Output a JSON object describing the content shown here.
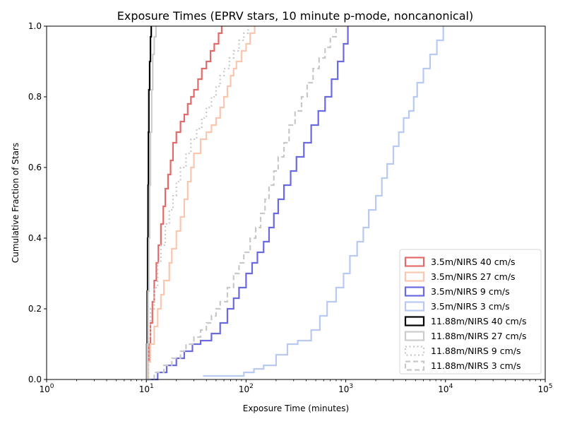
{
  "chart_data": {
    "type": "line",
    "title": "Exposure Times (EPRV stars, 10 minute p-mode, noncanonical)",
    "xlabel": "Exposure Time (minutes)",
    "ylabel": "Cumulative Fraction of Stars",
    "xscale": "log",
    "xlim": [
      1,
      100000
    ],
    "ylim": [
      0,
      1
    ],
    "x_ticks": [
      {
        "value": 1,
        "base": "10",
        "exp": "0"
      },
      {
        "value": 10,
        "base": "10",
        "exp": "1"
      },
      {
        "value": 100,
        "base": "10",
        "exp": "2"
      },
      {
        "value": 1000,
        "base": "10",
        "exp": "3"
      },
      {
        "value": 10000,
        "base": "10",
        "exp": "4"
      },
      {
        "value": 100000,
        "base": "10",
        "exp": "5"
      }
    ],
    "y_ticks": [
      "0.0",
      "0.2",
      "0.4",
      "0.6",
      "0.8",
      "1.0"
    ],
    "grid": false,
    "legend_position": "lower-right",
    "series": [
      {
        "name": "3.5m/NIRS 40 cm/s",
        "color": "#e26a6a",
        "style": "solid",
        "width": 2.2,
        "x": [
          10,
          10.3,
          10.6,
          11,
          11.5,
          12,
          12.6,
          13.2,
          14,
          14.8,
          15.5,
          16.5,
          17.5,
          18.5,
          20,
          22,
          24,
          26,
          28,
          30,
          33,
          36,
          40,
          44,
          48,
          53,
          57
        ],
        "y": [
          0,
          0.05,
          0.1,
          0.16,
          0.22,
          0.28,
          0.33,
          0.38,
          0.44,
          0.49,
          0.54,
          0.58,
          0.62,
          0.67,
          0.7,
          0.73,
          0.75,
          0.78,
          0.8,
          0.82,
          0.85,
          0.88,
          0.9,
          0.93,
          0.95,
          0.98,
          1.0
        ]
      },
      {
        "name": "3.5m/NIRS 27 cm/s",
        "color": "#f9c7b0",
        "style": "solid",
        "width": 2.2,
        "x": [
          10,
          10.5,
          11,
          12,
          13,
          14,
          15,
          17,
          18,
          20,
          22,
          24,
          26,
          28,
          30,
          35,
          40,
          45,
          50,
          55,
          60,
          65,
          70,
          75,
          80,
          90,
          100,
          110,
          122
        ],
        "y": [
          0,
          0.05,
          0.1,
          0.15,
          0.2,
          0.24,
          0.28,
          0.33,
          0.37,
          0.42,
          0.46,
          0.51,
          0.56,
          0.6,
          0.64,
          0.68,
          0.7,
          0.72,
          0.74,
          0.77,
          0.8,
          0.83,
          0.86,
          0.88,
          0.9,
          0.93,
          0.95,
          0.98,
          1.0
        ]
      },
      {
        "name": "3.5m/NIRS 9 cm/s",
        "color": "#6a6ae0",
        "style": "solid",
        "width": 2.2,
        "x": [
          10,
          13,
          16,
          20,
          24,
          29,
          35,
          45,
          55,
          65,
          75,
          85,
          100,
          115,
          130,
          150,
          170,
          190,
          210,
          240,
          280,
          320,
          380,
          450,
          530,
          620,
          720,
          830,
          950,
          1050
        ],
        "y": [
          0,
          0.02,
          0.04,
          0.06,
          0.08,
          0.1,
          0.11,
          0.13,
          0.16,
          0.2,
          0.23,
          0.26,
          0.3,
          0.33,
          0.36,
          0.39,
          0.43,
          0.47,
          0.51,
          0.55,
          0.59,
          0.63,
          0.67,
          0.72,
          0.76,
          0.8,
          0.85,
          0.9,
          0.95,
          1.0
        ]
      },
      {
        "name": "3.5m/NIRS 3 cm/s",
        "color": "#b8c9f2",
        "style": "solid",
        "width": 2.2,
        "x": [
          37,
          95,
          120,
          150,
          200,
          260,
          330,
          450,
          550,
          650,
          800,
          950,
          1100,
          1300,
          1500,
          1700,
          2000,
          2300,
          2600,
          3000,
          3400,
          3800,
          4300,
          4800,
          5200,
          6000,
          7000,
          8200,
          9500
        ],
        "y": [
          0.01,
          0.02,
          0.03,
          0.04,
          0.07,
          0.1,
          0.11,
          0.14,
          0.18,
          0.22,
          0.26,
          0.3,
          0.35,
          0.39,
          0.43,
          0.48,
          0.52,
          0.57,
          0.61,
          0.66,
          0.7,
          0.74,
          0.76,
          0.8,
          0.84,
          0.88,
          0.92,
          0.96,
          1.0
        ]
      },
      {
        "name": "11.88m/NIRS 40 cm/s",
        "color": "#000000",
        "style": "solid",
        "width": 2.2,
        "x": [
          10,
          10.1,
          10.2,
          10.3,
          10.4,
          10.5,
          10.6,
          10.8,
          11,
          11.2
        ],
        "y": [
          0,
          0.1,
          0.25,
          0.4,
          0.55,
          0.7,
          0.82,
          0.9,
          0.97,
          1.0
        ]
      },
      {
        "name": "11.88m/NIRS 27 cm/s",
        "color": "#cccccc",
        "style": "solid",
        "width": 2.2,
        "x": [
          10,
          10.2,
          10.4,
          10.6,
          10.8,
          11,
          11.3,
          11.6,
          12,
          12.5
        ],
        "y": [
          0,
          0.1,
          0.25,
          0.4,
          0.55,
          0.7,
          0.82,
          0.92,
          0.97,
          1.0
        ]
      },
      {
        "name": "11.88m/NIRS 9 cm/s",
        "color": "#c8c8c8",
        "style": "dotted",
        "width": 2.2,
        "x": [
          10,
          10.5,
          11,
          12,
          13,
          14,
          15.5,
          17,
          18.5,
          20,
          22,
          25,
          28,
          32,
          36,
          40,
          45,
          50,
          55,
          60,
          68,
          75,
          85,
          95,
          105
        ],
        "y": [
          0,
          0.12,
          0.2,
          0.26,
          0.33,
          0.38,
          0.44,
          0.48,
          0.52,
          0.56,
          0.6,
          0.64,
          0.68,
          0.71,
          0.74,
          0.77,
          0.8,
          0.83,
          0.86,
          0.88,
          0.91,
          0.93,
          0.96,
          0.98,
          1.0
        ]
      },
      {
        "name": "11.88m/NIRS 3 cm/s",
        "color": "#c8c8c8",
        "style": "dashed",
        "width": 2.2,
        "x": [
          10,
          12,
          15,
          18,
          22,
          25,
          30,
          35,
          40,
          45,
          50,
          55,
          65,
          75,
          85,
          95,
          110,
          125,
          140,
          155,
          170,
          190,
          210,
          240,
          270,
          310,
          360,
          410,
          470,
          540,
          620,
          700,
          800
        ],
        "y": [
          0,
          0.02,
          0.04,
          0.06,
          0.08,
          0.1,
          0.12,
          0.14,
          0.16,
          0.18,
          0.2,
          0.22,
          0.26,
          0.3,
          0.33,
          0.36,
          0.4,
          0.43,
          0.47,
          0.51,
          0.55,
          0.59,
          0.63,
          0.67,
          0.72,
          0.76,
          0.8,
          0.84,
          0.88,
          0.91,
          0.94,
          0.97,
          1.0
        ]
      }
    ]
  }
}
